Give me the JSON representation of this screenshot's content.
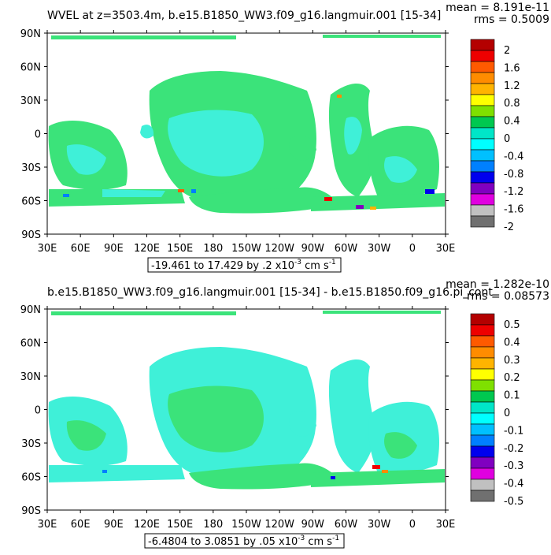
{
  "panels": [
    {
      "title": "WVEL at z=3503.4m, b.e15.B1850_WW3.f09_g16.langmuir.001 [15-34]",
      "mean": "mean = 8.191e-11",
      "rms": "rms = 0.5009",
      "range": "-19.461 to 17.429 by .2 x10",
      "exp": "-3",
      "units": "cm s",
      "units_exp": "-1",
      "colorbar": [
        "2",
        "1.6",
        "1.2",
        "0.8",
        "0.4",
        "0",
        "-0.4",
        "-0.8",
        "-1.2",
        "-1.6",
        "-2"
      ]
    },
    {
      "title": "b.e15.B1850_WW3.f09_g16.langmuir.001 [15-34] - b.e15.B1850.f09_g16.pi_cont",
      "mean": "mean = 1.282e-10",
      "rms": "rms = 0.08573",
      "range": "-6.4804 to 3.0851 by .05 x10",
      "exp": "-3",
      "units": "cm s",
      "units_exp": "-1",
      "colorbar": [
        "0.5",
        "0.4",
        "0.3",
        "0.2",
        "0.1",
        "0",
        "-0.1",
        "-0.2",
        "-0.3",
        "-0.4",
        "-0.5"
      ]
    }
  ],
  "lat_labels": [
    "90N",
    "60N",
    "30N",
    "0",
    "30S",
    "60S",
    "90S"
  ],
  "lon_labels": [
    "30E",
    "60E",
    "90E",
    "120E",
    "150E",
    "180",
    "150W",
    "120W",
    "90W",
    "60W",
    "30W",
    "0",
    "30E"
  ],
  "colorbar_colors": [
    "#b40000",
    "#ee0000",
    "#ff5a00",
    "#ff8c00",
    "#ffb400",
    "#ffff00",
    "#7fe000",
    "#00c850",
    "#00e6c8",
    "#00ffff",
    "#00c0ff",
    "#0080ff",
    "#0000ee",
    "#8000c0",
    "#e000e0",
    "#c0c0c0",
    "#707070"
  ],
  "map_colors": {
    "ocean_main": "#3be37a",
    "ocean_alt": "#3ff0d8",
    "land": "#ffffff"
  }
}
